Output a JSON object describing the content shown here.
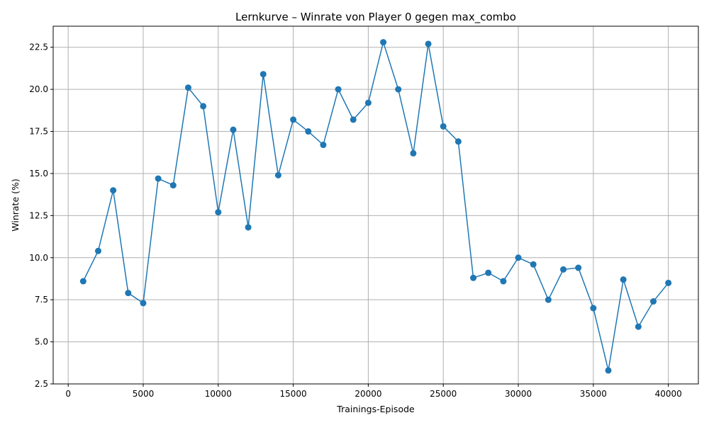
{
  "chart_data": {
    "type": "line",
    "title": "Lernkurve – Winrate von Player 0 gegen max_combo",
    "xlabel": "Trainings-Episode",
    "ylabel": "Winrate (%)",
    "xlim": [
      -1000,
      42000
    ],
    "ylim": [
      2.5,
      23.75
    ],
    "xticks": [
      0,
      5000,
      10000,
      15000,
      20000,
      25000,
      30000,
      35000,
      40000
    ],
    "yticks": [
      2.5,
      5.0,
      7.5,
      10.0,
      12.5,
      15.0,
      17.5,
      20.0,
      22.5
    ],
    "xtick_labels": [
      "0",
      "5000",
      "10000",
      "15000",
      "20000",
      "25000",
      "30000",
      "35000",
      "40000"
    ],
    "ytick_labels": [
      "2.5",
      "5.0",
      "7.5",
      "10.0",
      "12.5",
      "15.0",
      "17.5",
      "20.0",
      "22.5"
    ],
    "grid": true,
    "series": [
      {
        "color": "#1f77b4",
        "marker": "circle",
        "x": [
          1000,
          2000,
          3000,
          4000,
          5000,
          6000,
          7000,
          8000,
          9000,
          10000,
          11000,
          12000,
          13000,
          14000,
          15000,
          16000,
          17000,
          18000,
          19000,
          20000,
          21000,
          22000,
          23000,
          24000,
          25000,
          26000,
          27000,
          28000,
          29000,
          30000,
          31000,
          32000,
          33000,
          34000,
          35000,
          36000,
          37000,
          38000,
          39000,
          40000
        ],
        "y": [
          8.6,
          10.4,
          14.0,
          7.9,
          7.3,
          14.7,
          14.3,
          20.1,
          19.0,
          12.7,
          17.6,
          11.8,
          20.9,
          14.9,
          18.2,
          17.5,
          16.7,
          20.0,
          18.2,
          19.2,
          22.8,
          20.0,
          16.2,
          22.7,
          17.8,
          16.9,
          8.8,
          9.1,
          8.6,
          10.0,
          9.6,
          7.5,
          9.3,
          9.4,
          7.0,
          3.3,
          8.7,
          5.9,
          7.4,
          8.5
        ]
      }
    ]
  }
}
